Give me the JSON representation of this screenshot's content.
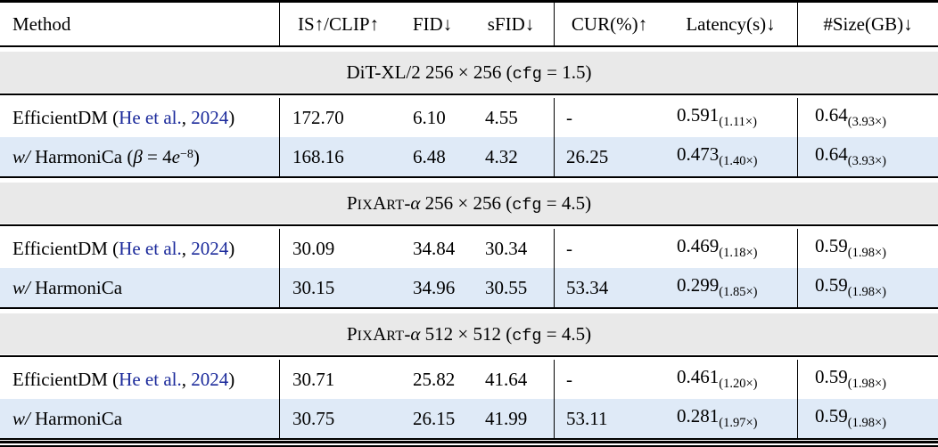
{
  "meta": {
    "citation_color": "#1b2a9b",
    "highlight_row_color": "#dfeaf7",
    "section_band_color": "#e9e9e9"
  },
  "header": {
    "columns": [
      "Method",
      "IS↑/CLIP↑",
      "FID↓",
      "sFID↓",
      "CUR(%)↑",
      "Latency(s)↓",
      "#Size(GB)↓"
    ]
  },
  "column_keys": [
    "is-clip",
    "fid",
    "sfid",
    "cur",
    "latency",
    "size"
  ],
  "sections": [
    {
      "title": [
        {
          "t": "DiT-XL/2 256 × 256 (",
          "s": "n"
        },
        {
          "t": "cfg",
          "s": "tt"
        },
        {
          "t": " = 1.5)",
          "s": "n"
        }
      ],
      "rows": [
        {
          "highlight": false,
          "method": [
            {
              "t": "EfficientDM (",
              "s": "n"
            },
            {
              "t": "He et al.",
              "s": "cite"
            },
            {
              "t": ", ",
              "s": "n"
            },
            {
              "t": "2024",
              "s": "cite"
            },
            {
              "t": ")",
              "s": "n"
            }
          ],
          "cells": [
            {
              "v": "172.70"
            },
            {
              "v": "6.10"
            },
            {
              "v": "4.55"
            },
            {
              "v": "-"
            },
            {
              "v": "0.591",
              "sub": "(1.11×)"
            },
            {
              "v": "0.64",
              "sub": "(3.93×)"
            }
          ]
        },
        {
          "highlight": true,
          "method": [
            {
              "t": "w/",
              "s": "i"
            },
            {
              "t": " HarmoniCa (",
              "s": "n"
            },
            {
              "t": "β",
              "s": "i"
            },
            {
              "t": " = 4",
              "s": "n"
            },
            {
              "t": "e",
              "s": "i"
            },
            {
              "t": "−8",
              "s": "sup"
            },
            {
              "t": ")",
              "s": "n"
            }
          ],
          "cells": [
            {
              "v": "168.16"
            },
            {
              "v": "6.48"
            },
            {
              "v": "4.32"
            },
            {
              "v": "26.25"
            },
            {
              "v": "0.473",
              "sub": "(1.40×)"
            },
            {
              "v": "0.64",
              "sub": "(3.93×)"
            }
          ]
        }
      ]
    },
    {
      "title": [
        {
          "t": "P",
          "s": "n"
        },
        {
          "t": "IX",
          "s": "sc"
        },
        {
          "t": "A",
          "s": "n"
        },
        {
          "t": "RT",
          "s": "sc"
        },
        {
          "t": "-",
          "s": "n"
        },
        {
          "t": "α",
          "s": "i"
        },
        {
          "t": " 256 × 256 (",
          "s": "n"
        },
        {
          "t": "cfg",
          "s": "tt"
        },
        {
          "t": " = 4.5)",
          "s": "n"
        }
      ],
      "rows": [
        {
          "highlight": false,
          "method": [
            {
              "t": "EfficientDM (",
              "s": "n"
            },
            {
              "t": "He et al.",
              "s": "cite"
            },
            {
              "t": ", ",
              "s": "n"
            },
            {
              "t": "2024",
              "s": "cite"
            },
            {
              "t": ")",
              "s": "n"
            }
          ],
          "cells": [
            {
              "v": "30.09"
            },
            {
              "v": "34.84"
            },
            {
              "v": "30.34"
            },
            {
              "v": "-"
            },
            {
              "v": "0.469",
              "sub": "(1.18×)"
            },
            {
              "v": "0.59",
              "sub": "(1.98×)"
            }
          ]
        },
        {
          "highlight": true,
          "method": [
            {
              "t": "w/",
              "s": "i"
            },
            {
              "t": " HarmoniCa",
              "s": "n"
            }
          ],
          "cells": [
            {
              "v": "30.15"
            },
            {
              "v": "34.96"
            },
            {
              "v": "30.55"
            },
            {
              "v": "53.34"
            },
            {
              "v": "0.299",
              "sub": "(1.85×)"
            },
            {
              "v": "0.59",
              "sub": "(1.98×)"
            }
          ]
        }
      ]
    },
    {
      "title": [
        {
          "t": "P",
          "s": "n"
        },
        {
          "t": "IX",
          "s": "sc"
        },
        {
          "t": "A",
          "s": "n"
        },
        {
          "t": "RT",
          "s": "sc"
        },
        {
          "t": "-",
          "s": "n"
        },
        {
          "t": "α",
          "s": "i"
        },
        {
          "t": " 512 × 512 (",
          "s": "n"
        },
        {
          "t": "cfg",
          "s": "tt"
        },
        {
          "t": " = 4.5)",
          "s": "n"
        }
      ],
      "rows": [
        {
          "highlight": false,
          "method": [
            {
              "t": "EfficientDM (",
              "s": "n"
            },
            {
              "t": "He et al.",
              "s": "cite"
            },
            {
              "t": ", ",
              "s": "n"
            },
            {
              "t": "2024",
              "s": "cite"
            },
            {
              "t": ")",
              "s": "n"
            }
          ],
          "cells": [
            {
              "v": "30.71"
            },
            {
              "v": "25.82"
            },
            {
              "v": "41.64"
            },
            {
              "v": "-"
            },
            {
              "v": "0.461",
              "sub": "(1.20×)"
            },
            {
              "v": "0.59",
              "sub": "(1.98×)"
            }
          ]
        },
        {
          "highlight": true,
          "method": [
            {
              "t": "w/",
              "s": "i"
            },
            {
              "t": " HarmoniCa",
              "s": "n"
            }
          ],
          "cells": [
            {
              "v": "30.75"
            },
            {
              "v": "26.15"
            },
            {
              "v": "41.99"
            },
            {
              "v": "53.11"
            },
            {
              "v": "0.281",
              "sub": "(1.97×)"
            },
            {
              "v": "0.59",
              "sub": "(1.98×)"
            }
          ]
        }
      ]
    }
  ]
}
